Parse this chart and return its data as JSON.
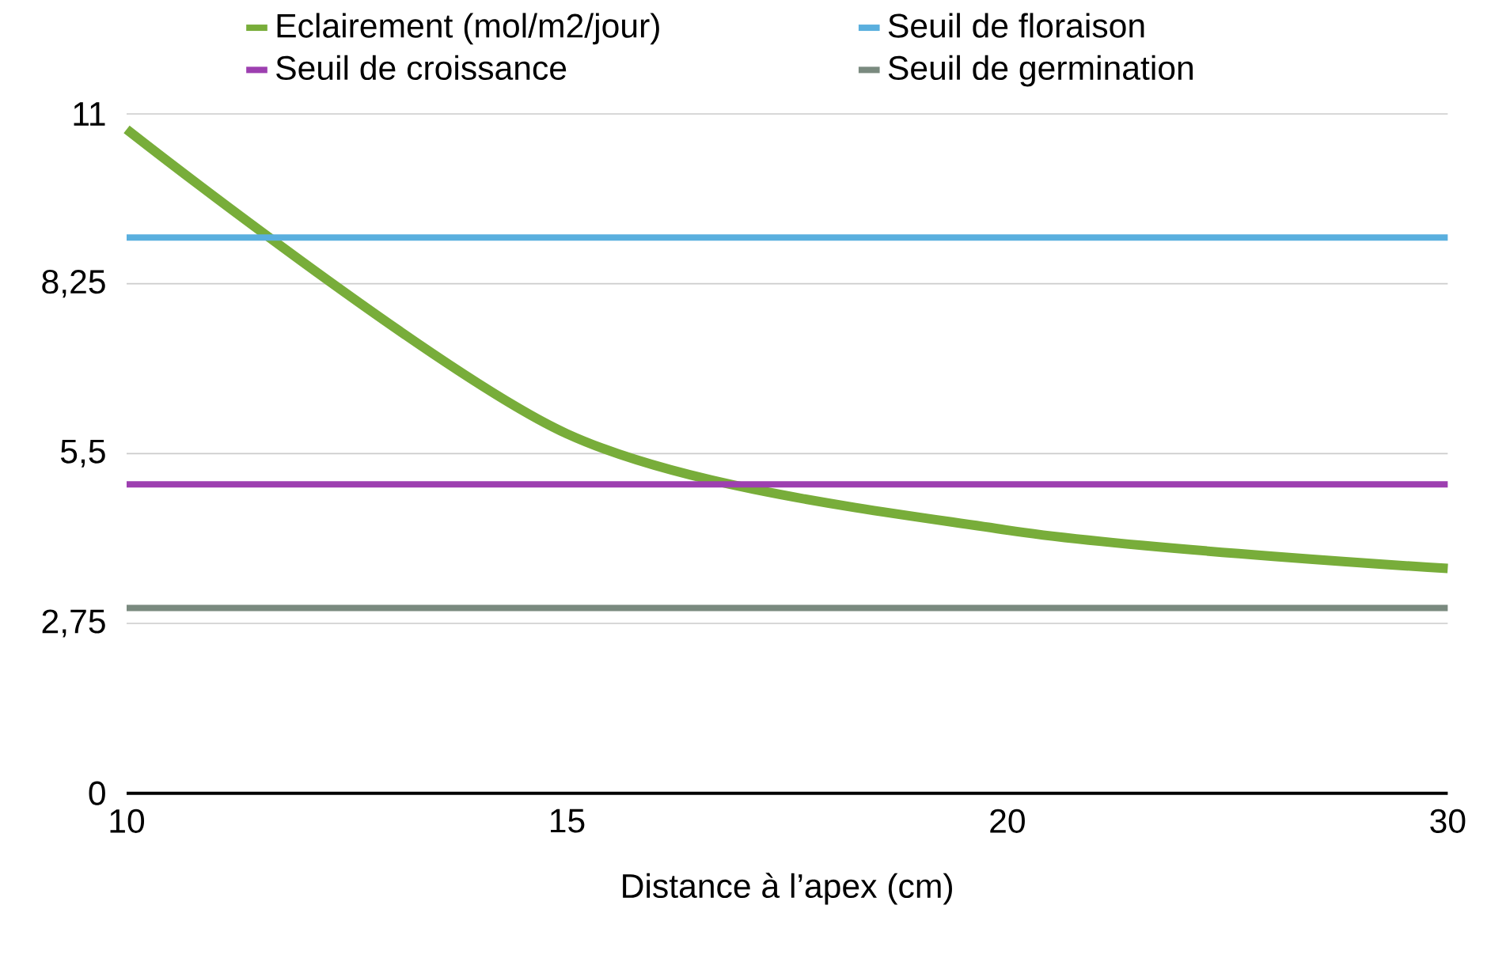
{
  "chart_data": {
    "type": "line",
    "xlabel": "Distance à l’apex (cm)",
    "categories": [
      "10",
      "15",
      "20",
      "30"
    ],
    "series": [
      {
        "name": "Eclairement (mol/m2/jour)",
        "color": "#78ad3a",
        "values": [
          10.75,
          5.82,
          4.26,
          3.64
        ]
      },
      {
        "name": "Seuil de floraison",
        "color": "#5aafde",
        "values": [
          9,
          9,
          9,
          9
        ]
      },
      {
        "name": "Seuil de croissance",
        "color": "#9d3fb0",
        "values": [
          5,
          5,
          5,
          5
        ]
      },
      {
        "name": "Seuil de germination",
        "color": "#7a8a7f",
        "values": [
          3,
          3,
          3,
          3
        ]
      }
    ],
    "ylim": [
      0,
      11
    ],
    "yticks": [
      0,
      {
        "value": 2.75,
        "label": "2,75"
      },
      {
        "value": 5.5,
        "label": "5,5"
      },
      {
        "value": 8.25,
        "label": "8,25"
      },
      11
    ],
    "grid": "y",
    "legend": "top"
  }
}
